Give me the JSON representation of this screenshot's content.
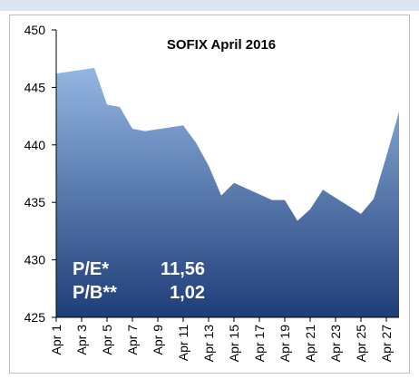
{
  "chart_data": {
    "type": "area",
    "title": "SOFIX April 2016",
    "x": [
      1,
      4,
      5,
      6,
      7,
      8,
      11,
      12,
      13,
      14,
      15,
      18,
      19,
      20,
      21,
      22,
      25,
      26,
      27,
      28
    ],
    "values": [
      446.2,
      446.7,
      443.5,
      443.3,
      441.4,
      441.2,
      441.7,
      440.2,
      438.2,
      435.6,
      436.7,
      435.2,
      435.2,
      433.4,
      434.4,
      436.1,
      434.0,
      435.3,
      439.0,
      442.9
    ],
    "color_top": "#93b6e2",
    "color_bottom": "#1f3d78",
    "xlim": [
      1,
      28
    ],
    "xticks": [
      {
        "value": 1,
        "label": "Apr 1"
      },
      {
        "value": 3,
        "label": "Apr 3"
      },
      {
        "value": 5,
        "label": "Apr 5"
      },
      {
        "value": 7,
        "label": "Apr 7"
      },
      {
        "value": 9,
        "label": "Apr 9"
      },
      {
        "value": 11,
        "label": "Apr 11"
      },
      {
        "value": 13,
        "label": "Apr 13"
      },
      {
        "value": 15,
        "label": "Apr 15"
      },
      {
        "value": 17,
        "label": "Apr 17"
      },
      {
        "value": 19,
        "label": "Apr 19"
      },
      {
        "value": 21,
        "label": "Apr 21"
      },
      {
        "value": 23,
        "label": "Apr 23"
      },
      {
        "value": 25,
        "label": "Apr 25"
      },
      {
        "value": 27,
        "label": "Apr 27"
      }
    ],
    "ylim": [
      425,
      450
    ],
    "yticks": [
      425,
      430,
      435,
      440,
      445,
      450
    ],
    "grid": false,
    "annotations": [
      {
        "label": "P/E*",
        "value": "11,56"
      },
      {
        "label": "P/B**",
        "value": "1,02"
      }
    ]
  }
}
